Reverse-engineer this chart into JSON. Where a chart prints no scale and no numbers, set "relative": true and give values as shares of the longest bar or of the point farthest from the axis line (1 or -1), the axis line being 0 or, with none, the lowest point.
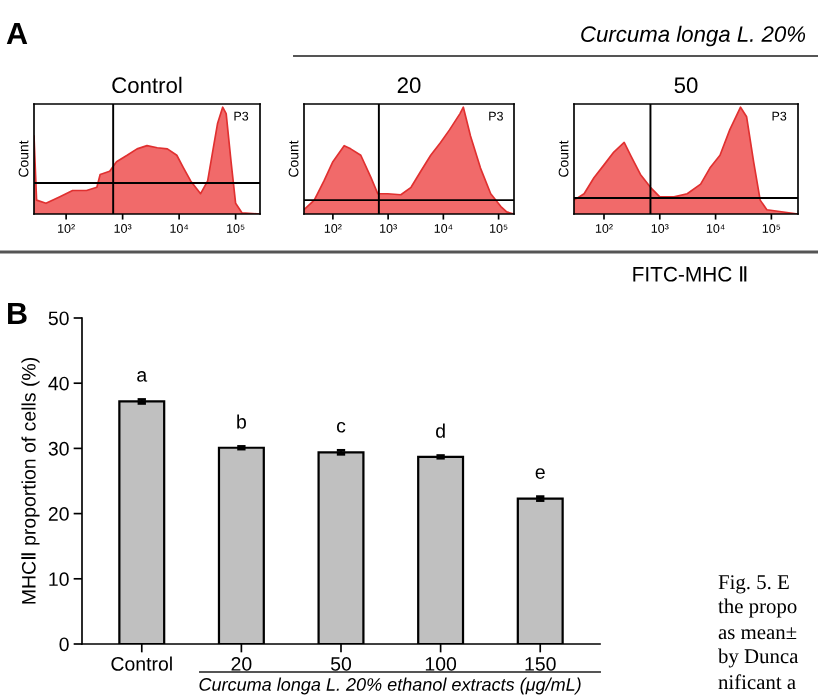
{
  "chart_data": [
    {
      "type": "area",
      "relative": true,
      "title": "Control",
      "ylabel": "Count",
      "color": "#f05a5a",
      "log": "x",
      "tick_labels": "x",
      "grid": false,
      "x": [
        27,
        30,
        44,
        76,
        130,
        230,
        350,
        400,
        590,
        780,
        1200,
        1800,
        2700,
        4100,
        6200,
        9100,
        12000,
        16000,
        24000,
        32000,
        40000,
        48000,
        59000,
        68000,
        83000,
        100000,
        130000,
        270000
      ],
      "values": [
        0.73,
        0.13,
        0.1,
        0.16,
        0.22,
        0.22,
        0.25,
        0.37,
        0.4,
        0.49,
        0.55,
        0.61,
        0.64,
        0.62,
        0.61,
        0.55,
        0.43,
        0.31,
        0.19,
        0.31,
        0.61,
        0.85,
        1,
        0.94,
        0.49,
        0.1,
        0.01,
        0
      ],
      "xlim": [
        27,
        270000
      ],
      "xticks": [
        {
          "value": 100,
          "label": "10²"
        },
        {
          "value": 1000,
          "label": "10³"
        },
        {
          "value": 10000,
          "label": "10⁴"
        },
        {
          "value": 100000,
          "label": "10⁵"
        }
      ],
      "ref_lines": [
        {
          "axis": "x",
          "value": 680
        },
        {
          "axis": "y",
          "value": 0.29
        }
      ],
      "annotations": [
        "A",
        "P3"
      ]
    },
    {
      "type": "area",
      "relative": true,
      "title": "20",
      "ylabel": "Count",
      "color": "#f05a5a",
      "log": "x",
      "tick_labels": "x",
      "grid": false,
      "x": [
        30,
        46,
        69,
        100,
        160,
        210,
        320,
        490,
        650,
        980,
        1700,
        2600,
        3900,
        5900,
        8900,
        13000,
        20000,
        23000,
        31000,
        47000,
        72000,
        110000,
        140000,
        190000
      ],
      "values": [
        0.04,
        0.13,
        0.31,
        0.49,
        0.64,
        0.61,
        0.55,
        0.34,
        0.19,
        0.19,
        0.18,
        0.25,
        0.4,
        0.55,
        0.67,
        0.79,
        0.94,
        1,
        0.73,
        0.43,
        0.19,
        0.07,
        0.02,
        0
      ],
      "xlim": [
        30,
        190000
      ],
      "xticks": [
        {
          "value": 100,
          "label": "10²"
        },
        {
          "value": 1000,
          "label": "10³"
        },
        {
          "value": 10000,
          "label": "10⁴"
        },
        {
          "value": 100000,
          "label": "10⁵"
        }
      ],
      "ref_lines": [
        {
          "axis": "x",
          "value": 680
        },
        {
          "axis": "y",
          "value": 0.13
        }
      ],
      "annotations": [
        "P3"
      ]
    },
    {
      "type": "area",
      "relative": true,
      "title": "50",
      "ylabel": "Count",
      "color": "#f05a5a",
      "log": "x",
      "tick_labels": "x",
      "grid": false,
      "x": [
        29,
        44,
        66,
        100,
        150,
        230,
        300,
        450,
        680,
        1000,
        1800,
        3100,
        5400,
        7900,
        12000,
        18000,
        28000,
        36000,
        48000,
        63000,
        83000,
        300000
      ],
      "values": [
        0.13,
        0.19,
        0.34,
        0.46,
        0.58,
        0.67,
        0.55,
        0.37,
        0.25,
        0.16,
        0.16,
        0.19,
        0.28,
        0.43,
        0.55,
        0.79,
        1,
        0.91,
        0.49,
        0.13,
        0.04,
        0
      ],
      "xlim": [
        29,
        300000
      ],
      "xticks": [
        {
          "value": 100,
          "label": "10²"
        },
        {
          "value": 1000,
          "label": "10³"
        },
        {
          "value": 10000,
          "label": "10⁴"
        },
        {
          "value": 100000,
          "label": "10⁵"
        }
      ],
      "ref_lines": [
        {
          "axis": "x",
          "value": 680
        },
        {
          "axis": "y",
          "value": 0.15
        }
      ],
      "annotations": [
        "P3",
        "Curcuma longa L. 20%",
        "FITC-MHC Ⅱ"
      ]
    },
    {
      "type": "bar",
      "ylabel": "MHCⅡ proportion of cells (%)",
      "xlabel": "Curcuma longa L. 20% ethanol extracts (μg/mL)",
      "color": "#c0c0c0",
      "grid": false,
      "categories": [
        "Control",
        "20",
        "50",
        "100",
        "150"
      ],
      "values": [
        37.2,
        30.1,
        29.4,
        28.7,
        22.3
      ],
      "errors": [
        0.3,
        0.2,
        0.3,
        0.2,
        0.3
      ],
      "ylim": [
        0,
        50
      ],
      "yticks": [
        0,
        10,
        20,
        30,
        40,
        50
      ],
      "annotations": [
        "a",
        "b",
        "c",
        "d",
        "e",
        "B",
        "Fig. 5. E",
        "the propo",
        "as mean±",
        "by Dunca",
        "nificant a"
      ]
    }
  ]
}
